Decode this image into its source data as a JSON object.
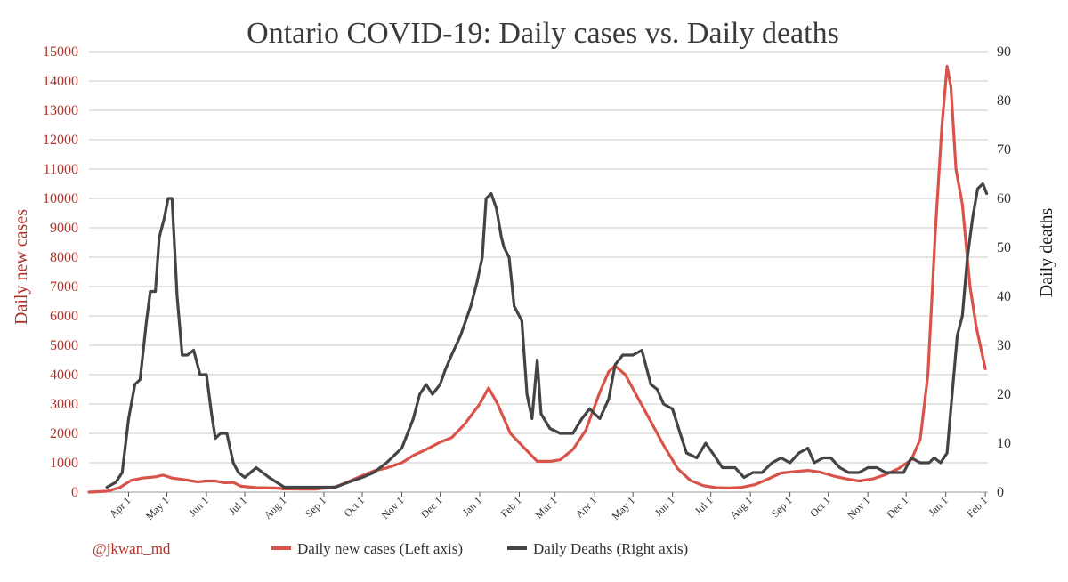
{
  "chart_data": {
    "type": "line",
    "title": "Ontario COVID-19: Daily cases vs. Daily deaths",
    "ylabel_left": "Daily new cases",
    "ylabel_right": "Daily deaths",
    "ylim_left": [
      0,
      15000
    ],
    "ylim_right": [
      0,
      90
    ],
    "yticks_left": [
      "0",
      "1000",
      "2000",
      "3000",
      "4000",
      "5000",
      "6000",
      "7000",
      "8000",
      "9000",
      "10000",
      "11000",
      "12000",
      "13000",
      "14000",
      "15000"
    ],
    "yticks_right": [
      "0",
      "10",
      "20",
      "30",
      "40",
      "50",
      "60",
      "70",
      "80",
      "90"
    ],
    "grid": true,
    "legend_position": "bottom",
    "x_axis": {
      "start": "2020-03-01",
      "end": "2022-02-03",
      "ticks": [
        {
          "label": "Apr 1",
          "date": "2020-04-01"
        },
        {
          "label": "May 1",
          "date": "2020-05-01"
        },
        {
          "label": "Jun 1",
          "date": "2020-06-01"
        },
        {
          "label": "Jul 1",
          "date": "2020-07-01"
        },
        {
          "label": "Aug 1",
          "date": "2020-08-01"
        },
        {
          "label": "Sep 1",
          "date": "2020-09-01"
        },
        {
          "label": "Oct 1",
          "date": "2020-10-01"
        },
        {
          "label": "Nov 1",
          "date": "2020-11-01"
        },
        {
          "label": "Dec 1",
          "date": "2020-12-01"
        },
        {
          "label": "Jan 1",
          "date": "2021-01-01"
        },
        {
          "label": "Feb 1",
          "date": "2021-02-01"
        },
        {
          "label": "Mar 1",
          "date": "2021-03-01"
        },
        {
          "label": "Apr 1",
          "date": "2021-04-01"
        },
        {
          "label": "May 1",
          "date": "2021-05-01"
        },
        {
          "label": "Jun 1",
          "date": "2021-06-01"
        },
        {
          "label": "Jul 1",
          "date": "2021-07-01"
        },
        {
          "label": "Aug 1",
          "date": "2021-08-01"
        },
        {
          "label": "Sep 1",
          "date": "2021-09-01"
        },
        {
          "label": "Oct 1",
          "date": "2021-10-01"
        },
        {
          "label": "Nov 1",
          "date": "2021-11-01"
        },
        {
          "label": "Dec 1",
          "date": "2021-12-01"
        },
        {
          "label": "Jan 1",
          "date": "2022-01-01"
        },
        {
          "label": "Feb 1",
          "date": "2022-02-01"
        }
      ]
    },
    "series": [
      {
        "name": "Daily new cases (Left axis)",
        "axis": "left",
        "color": "#d9534a",
        "points": [
          [
            "2020-03-01",
            0
          ],
          [
            "2020-03-15",
            30
          ],
          [
            "2020-03-25",
            150
          ],
          [
            "2020-04-03",
            400
          ],
          [
            "2020-04-12",
            480
          ],
          [
            "2020-04-22",
            520
          ],
          [
            "2020-04-28",
            580
          ],
          [
            "2020-05-05",
            480
          ],
          [
            "2020-05-15",
            420
          ],
          [
            "2020-05-25",
            350
          ],
          [
            "2020-06-01",
            380
          ],
          [
            "2020-06-08",
            380
          ],
          [
            "2020-06-15",
            320
          ],
          [
            "2020-06-22",
            330
          ],
          [
            "2020-06-28",
            200
          ],
          [
            "2020-07-10",
            150
          ],
          [
            "2020-07-25",
            140
          ],
          [
            "2020-08-01",
            110
          ],
          [
            "2020-08-15",
            100
          ],
          [
            "2020-08-25",
            100
          ],
          [
            "2020-09-01",
            130
          ],
          [
            "2020-09-10",
            180
          ],
          [
            "2020-09-20",
            350
          ],
          [
            "2020-10-01",
            560
          ],
          [
            "2020-10-10",
            720
          ],
          [
            "2020-10-20",
            820
          ],
          [
            "2020-11-01",
            1000
          ],
          [
            "2020-11-10",
            1250
          ],
          [
            "2020-11-20",
            1450
          ],
          [
            "2020-12-01",
            1700
          ],
          [
            "2020-12-10",
            1850
          ],
          [
            "2020-12-20",
            2300
          ],
          [
            "2021-01-01",
            3000
          ],
          [
            "2021-01-08",
            3550
          ],
          [
            "2021-01-15",
            3000
          ],
          [
            "2021-01-25",
            2000
          ],
          [
            "2021-02-05",
            1500
          ],
          [
            "2021-02-15",
            1050
          ],
          [
            "2021-02-25",
            1050
          ],
          [
            "2021-03-05",
            1100
          ],
          [
            "2021-03-15",
            1450
          ],
          [
            "2021-03-25",
            2100
          ],
          [
            "2021-04-05",
            3400
          ],
          [
            "2021-04-12",
            4100
          ],
          [
            "2021-04-17",
            4300
          ],
          [
            "2021-04-25",
            4000
          ],
          [
            "2021-05-05",
            3200
          ],
          [
            "2021-05-15",
            2400
          ],
          [
            "2021-05-25",
            1600
          ],
          [
            "2021-06-05",
            800
          ],
          [
            "2021-06-15",
            400
          ],
          [
            "2021-06-25",
            220
          ],
          [
            "2021-07-05",
            150
          ],
          [
            "2021-07-15",
            140
          ],
          [
            "2021-07-25",
            160
          ],
          [
            "2021-08-05",
            260
          ],
          [
            "2021-08-15",
            450
          ],
          [
            "2021-08-25",
            650
          ],
          [
            "2021-09-05",
            700
          ],
          [
            "2021-09-15",
            740
          ],
          [
            "2021-09-25",
            680
          ],
          [
            "2021-10-05",
            550
          ],
          [
            "2021-10-15",
            450
          ],
          [
            "2021-10-25",
            380
          ],
          [
            "2021-11-05",
            450
          ],
          [
            "2021-11-15",
            600
          ],
          [
            "2021-11-25",
            800
          ],
          [
            "2021-12-05",
            1100
          ],
          [
            "2021-12-12",
            1800
          ],
          [
            "2021-12-18",
            4000
          ],
          [
            "2021-12-24",
            9000
          ],
          [
            "2021-12-29",
            12500
          ],
          [
            "2022-01-02",
            14500
          ],
          [
            "2022-01-05",
            13800
          ],
          [
            "2022-01-09",
            11000
          ],
          [
            "2022-01-14",
            9800
          ],
          [
            "2022-01-20",
            7000
          ],
          [
            "2022-01-25",
            5600
          ],
          [
            "2022-02-01",
            4200
          ]
        ]
      },
      {
        "name": "Daily Deaths (Right axis)",
        "axis": "right",
        "color": "#444444",
        "points": [
          [
            "2020-03-15",
            1
          ],
          [
            "2020-03-22",
            2
          ],
          [
            "2020-03-27",
            4
          ],
          [
            "2020-04-01",
            15
          ],
          [
            "2020-04-06",
            22
          ],
          [
            "2020-04-10",
            23
          ],
          [
            "2020-04-15",
            35
          ],
          [
            "2020-04-18",
            41
          ],
          [
            "2020-04-22",
            41
          ],
          [
            "2020-04-25",
            52
          ],
          [
            "2020-04-29",
            56
          ],
          [
            "2020-05-02",
            60
          ],
          [
            "2020-05-05",
            60
          ],
          [
            "2020-05-09",
            40
          ],
          [
            "2020-05-13",
            28
          ],
          [
            "2020-05-17",
            28
          ],
          [
            "2020-05-22",
            29
          ],
          [
            "2020-05-27",
            24
          ],
          [
            "2020-06-01",
            24
          ],
          [
            "2020-06-05",
            16
          ],
          [
            "2020-06-08",
            11
          ],
          [
            "2020-06-12",
            12
          ],
          [
            "2020-06-17",
            12
          ],
          [
            "2020-06-22",
            6
          ],
          [
            "2020-06-26",
            4
          ],
          [
            "2020-07-01",
            3
          ],
          [
            "2020-07-10",
            5
          ],
          [
            "2020-07-20",
            3
          ],
          [
            "2020-08-01",
            1
          ],
          [
            "2020-08-10",
            1
          ],
          [
            "2020-08-20",
            1
          ],
          [
            "2020-09-01",
            1
          ],
          [
            "2020-09-10",
            1
          ],
          [
            "2020-09-20",
            2
          ],
          [
            "2020-10-01",
            3
          ],
          [
            "2020-10-10",
            4
          ],
          [
            "2020-10-20",
            6
          ],
          [
            "2020-11-01",
            9
          ],
          [
            "2020-11-10",
            15
          ],
          [
            "2020-11-15",
            20
          ],
          [
            "2020-11-20",
            22
          ],
          [
            "2020-11-25",
            20
          ],
          [
            "2020-12-01",
            22
          ],
          [
            "2020-12-05",
            25
          ],
          [
            "2020-12-10",
            28
          ],
          [
            "2020-12-17",
            32
          ],
          [
            "2020-12-25",
            38
          ],
          [
            "2020-12-30",
            43
          ],
          [
            "2021-01-03",
            48
          ],
          [
            "2021-01-06",
            60
          ],
          [
            "2021-01-10",
            61
          ],
          [
            "2021-01-14",
            58
          ],
          [
            "2021-01-18",
            52
          ],
          [
            "2021-01-20",
            50
          ],
          [
            "2021-01-24",
            48
          ],
          [
            "2021-01-28",
            38
          ],
          [
            "2021-02-03",
            35
          ],
          [
            "2021-02-07",
            20
          ],
          [
            "2021-02-11",
            15
          ],
          [
            "2021-02-15",
            27
          ],
          [
            "2021-02-18",
            16
          ],
          [
            "2021-02-25",
            13
          ],
          [
            "2021-03-05",
            12
          ],
          [
            "2021-03-15",
            12
          ],
          [
            "2021-03-22",
            15
          ],
          [
            "2021-03-28",
            17
          ],
          [
            "2021-04-05",
            15
          ],
          [
            "2021-04-12",
            19
          ],
          [
            "2021-04-17",
            26
          ],
          [
            "2021-04-23",
            28
          ],
          [
            "2021-05-01",
            28
          ],
          [
            "2021-05-08",
            29
          ],
          [
            "2021-05-15",
            22
          ],
          [
            "2021-05-20",
            21
          ],
          [
            "2021-05-25",
            18
          ],
          [
            "2021-06-01",
            17
          ],
          [
            "2021-06-07",
            12
          ],
          [
            "2021-06-12",
            8
          ],
          [
            "2021-06-20",
            7
          ],
          [
            "2021-06-27",
            10
          ],
          [
            "2021-07-05",
            7
          ],
          [
            "2021-07-10",
            5
          ],
          [
            "2021-07-20",
            5
          ],
          [
            "2021-07-27",
            3
          ],
          [
            "2021-08-03",
            4
          ],
          [
            "2021-08-10",
            4
          ],
          [
            "2021-08-18",
            6
          ],
          [
            "2021-08-25",
            7
          ],
          [
            "2021-09-01",
            6
          ],
          [
            "2021-09-08",
            8
          ],
          [
            "2021-09-15",
            9
          ],
          [
            "2021-09-20",
            6
          ],
          [
            "2021-09-27",
            7
          ],
          [
            "2021-10-03",
            7
          ],
          [
            "2021-10-10",
            5
          ],
          [
            "2021-10-17",
            4
          ],
          [
            "2021-10-25",
            4
          ],
          [
            "2021-11-01",
            5
          ],
          [
            "2021-11-08",
            5
          ],
          [
            "2021-11-15",
            4
          ],
          [
            "2021-11-22",
            4
          ],
          [
            "2021-11-29",
            4
          ],
          [
            "2021-12-05",
            7
          ],
          [
            "2021-12-12",
            6
          ],
          [
            "2021-12-19",
            6
          ],
          [
            "2021-12-23",
            7
          ],
          [
            "2021-12-28",
            6
          ],
          [
            "2022-01-02",
            8
          ],
          [
            "2022-01-06",
            20
          ],
          [
            "2022-01-10",
            32
          ],
          [
            "2022-01-14",
            36
          ],
          [
            "2022-01-18",
            48
          ],
          [
            "2022-01-22",
            56
          ],
          [
            "2022-01-26",
            62
          ],
          [
            "2022-01-30",
            63
          ],
          [
            "2022-02-02",
            61
          ]
        ]
      }
    ],
    "annotations": [
      "@jkwan_md"
    ]
  },
  "legend": {
    "cases_label": "Daily new cases (Left axis)",
    "deaths_label": "Daily Deaths (Right axis)",
    "cases_color": "#d9534a",
    "deaths_color": "#444444"
  },
  "credit": "@jkwan_md"
}
